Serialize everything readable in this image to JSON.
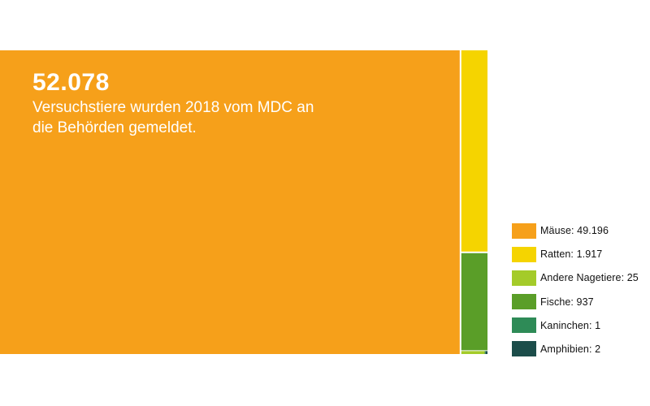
{
  "headline": {
    "total": "52.078",
    "subtitle": "Versuchstiere wurden 2018 vom MDC an die Behörden gemeldet."
  },
  "legend": [
    {
      "label": "Mäuse: 49.196"
    },
    {
      "label": "Ratten: 1.917"
    },
    {
      "label": "Andere Nagetiere: 25"
    },
    {
      "label": "Fische: 937"
    },
    {
      "label": "Kaninchen: 1"
    },
    {
      "label": "Amphibien: 2"
    }
  ],
  "chart_data": {
    "type": "treemap",
    "total": 52078,
    "categories": [
      "Mäuse",
      "Ratten",
      "Andere Nagetiere",
      "Fische",
      "Kaninchen",
      "Amphibien"
    ],
    "values": [
      49196,
      1917,
      25,
      937,
      1,
      2
    ],
    "colors": [
      "#f6a01a",
      "#f5d400",
      "#a4cb29",
      "#5a9e28",
      "#2e8b57",
      "#1c4d4a"
    ]
  }
}
